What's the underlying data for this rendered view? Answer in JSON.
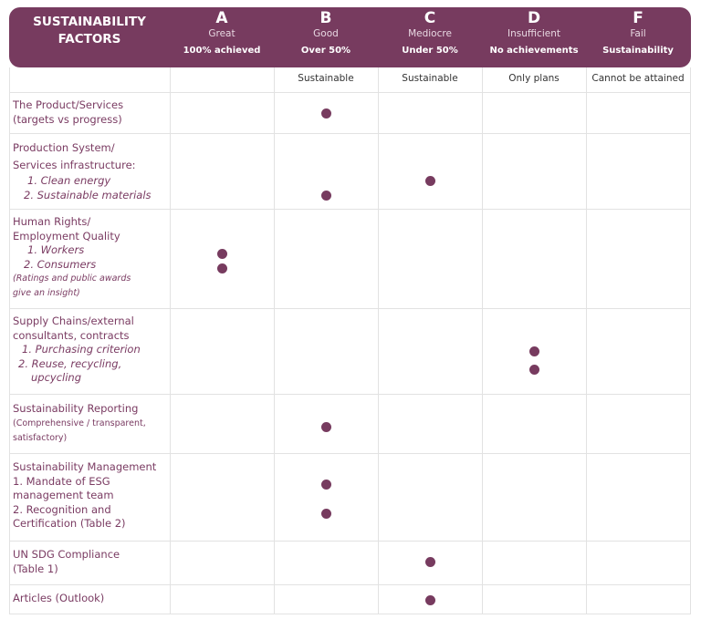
{
  "header": {
    "title_lines": [
      "SUSTAINABILITY",
      "FACTORS"
    ],
    "grades": [
      {
        "letter": "A",
        "label": "Great",
        "detail": "100% achieved",
        "sub": ""
      },
      {
        "letter": "B",
        "label": "Good",
        "detail": "Over 50%",
        "sub": "Sustainable"
      },
      {
        "letter": "C",
        "label": "Mediocre",
        "detail": "Under 50%",
        "sub": "Sustainable"
      },
      {
        "letter": "D",
        "label": "Insufficient",
        "detail": "No achievements",
        "sub": "Only plans"
      },
      {
        "letter": "F",
        "label": "Fail",
        "detail": "Sustainability",
        "sub": "Cannot be attained"
      }
    ]
  },
  "rows": [
    {
      "lines": [
        "The Product/Services",
        "(targets vs progress)"
      ],
      "ratings": [
        "B"
      ]
    },
    {
      "lines": [
        "Production System/",
        "Services infrastructure:"
      ],
      "items": [
        "1. Clean energy",
        "2. Sustainable materials"
      ],
      "ratings": [
        "C",
        "B"
      ]
    },
    {
      "lines": [
        "Human Rights/",
        "Employment Quality"
      ],
      "items": [
        "1. Workers",
        "2. Consumers"
      ],
      "notes": [
        "(Ratings and public awards",
        "give an insight)"
      ],
      "ratings": [
        "A",
        "A"
      ]
    },
    {
      "lines": [
        "Supply Chains/external",
        "consultants, contracts"
      ],
      "items": [
        "1. Purchasing  criterion",
        "2. Reuse, recycling,",
        "upcycling"
      ],
      "ratings": [
        "D",
        "D"
      ]
    },
    {
      "lines": [
        "Sustainability Reporting"
      ],
      "small": [
        "(Comprehensive / transparent,",
        "satisfactory)"
      ],
      "ratings": [
        "B"
      ]
    },
    {
      "lines": [
        "Sustainability Management",
        "1. Mandate of ESG",
        "management team",
        "2. Recognition and",
        "Certification (Table 2)"
      ],
      "ratings": [
        "B",
        "B"
      ]
    },
    {
      "lines": [
        "UN SDG Compliance",
        "(Table 1)"
      ],
      "ratings": [
        "C"
      ]
    },
    {
      "lines": [
        "Articles (Outlook)"
      ],
      "ratings": [
        "C"
      ]
    }
  ],
  "colors": {
    "brand": "#773b5f"
  }
}
